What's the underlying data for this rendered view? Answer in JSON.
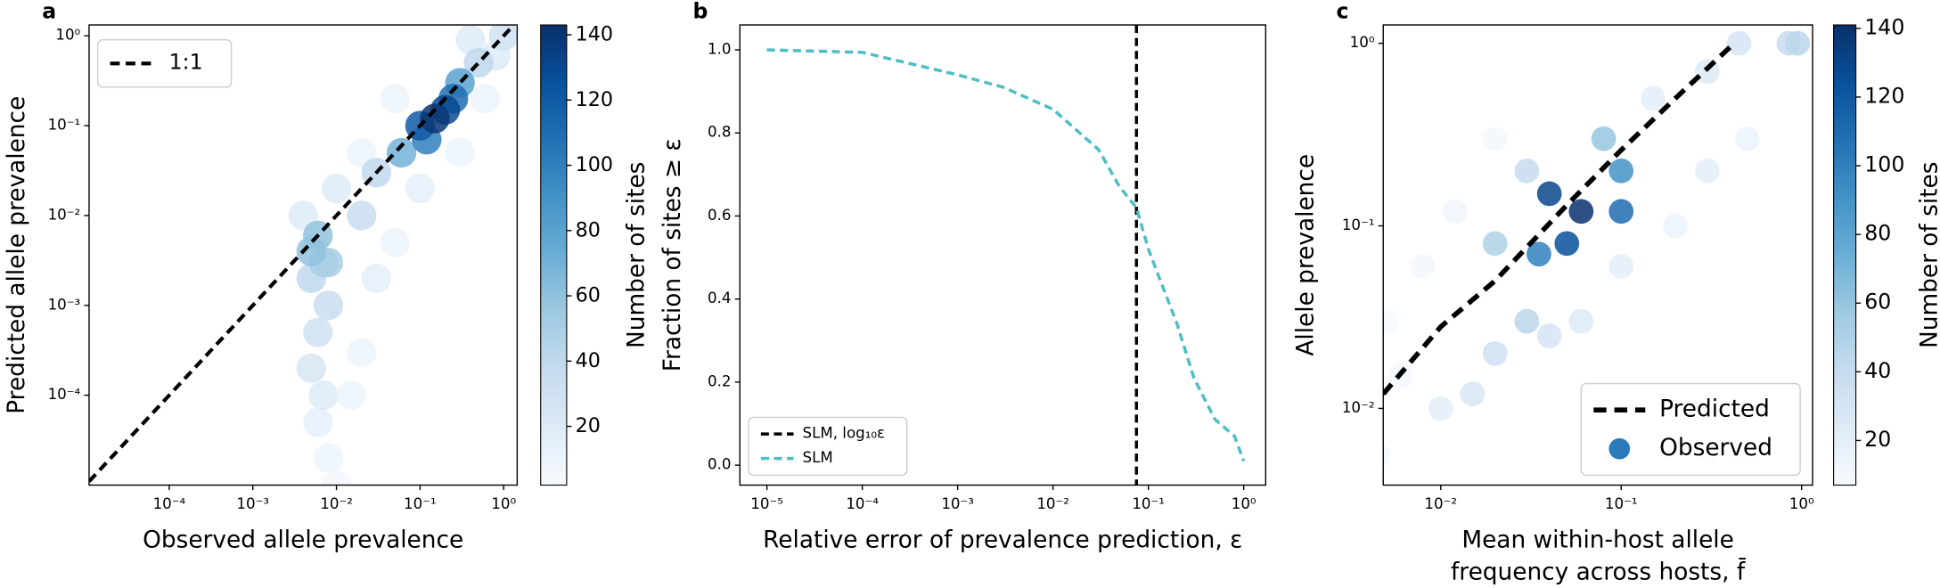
{
  "chart_data": [
    {
      "type": "scatter",
      "panel_label": "a",
      "xlabel": "Observed allele prevalence",
      "ylabel": "Predicted allele prevalence",
      "xscale": "log",
      "yscale": "log",
      "xlim": [
        1.1e-05,
        1.45
      ],
      "ylim": [
        1e-05,
        1.32
      ],
      "xticks": [
        {
          "value": 0.0001,
          "label": "10⁻⁴"
        },
        {
          "value": 0.001,
          "label": "10⁻³"
        },
        {
          "value": 0.01,
          "label": "10⁻²"
        },
        {
          "value": 0.1,
          "label": "10⁻¹"
        },
        {
          "value": 1,
          "label": "10⁰"
        }
      ],
      "yticks": [
        {
          "value": 0.0001,
          "label": "10⁻⁴"
        },
        {
          "value": 0.001,
          "label": "10⁻³"
        },
        {
          "value": 0.01,
          "label": "10⁻²"
        },
        {
          "value": 0.1,
          "label": "10⁻¹"
        },
        {
          "value": 1,
          "label": "10⁰"
        }
      ],
      "legend": "upper left",
      "colormap": [
        "#f7fbff",
        "#deebf7",
        "#c6dbef",
        "#9ecae1",
        "#6baed6",
        "#4292c6",
        "#2171b5",
        "#08519c",
        "#08306b"
      ],
      "colorbar": {
        "label": "Number of sites",
        "lim": [
          2,
          143
        ],
        "ticks": [
          20,
          40,
          60,
          80,
          100,
          120,
          140
        ]
      },
      "series": [
        {
          "type": "scatter",
          "x": [
            0.01,
            0.008,
            0.006,
            0.007,
            0.3,
            0.6,
            0.8,
            0.02,
            0.1,
            0.015,
            0.05,
            0.02,
            0.01,
            0.05,
            0.03,
            0.4,
            0.004,
            0.005,
            0.006,
            0.008,
            1.0,
            0.006,
            0.005,
            0.008,
            0.02,
            0.03,
            0.5,
            0.007,
            0.006,
            0.005,
            0.06,
            0.3,
            0.12,
            0.25,
            0.1,
            0.2,
            0.15
          ],
          "y": [
            1e-05,
            2e-05,
            5e-05,
            0.0001,
            0.05,
            0.2,
            0.6,
            0.0003,
            0.02,
            0.0001,
            0.005,
            0.05,
            0.02,
            0.2,
            0.002,
            0.9,
            0.01,
            0.0002,
            0.0005,
            0.001,
            1.0,
            0.006,
            0.002,
            0.003,
            0.01,
            0.03,
            0.5,
            0.003,
            0.006,
            0.004,
            0.05,
            0.3,
            0.07,
            0.2,
            0.1,
            0.15,
            0.12
          ],
          "density": [
            5,
            10,
            15,
            20,
            10,
            10,
            20,
            10,
            15,
            10,
            10,
            10,
            20,
            10,
            15,
            20,
            20,
            25,
            30,
            35,
            30,
            55,
            40,
            50,
            35,
            40,
            40,
            50,
            55,
            60,
            70,
            80,
            100,
            110,
            120,
            130,
            140
          ]
        },
        {
          "name": "1:1",
          "type": "line",
          "color": "#000000",
          "dash": true,
          "x": [
            1.1e-05,
            1.32
          ],
          "y": [
            1.1e-05,
            1.32
          ]
        }
      ]
    },
    {
      "type": "line",
      "panel_label": "b",
      "xlabel": "Relative error of prevalence prediction, ε",
      "ylabel": "Fraction of sites ≥ ε",
      "xscale": "log",
      "xlim": [
        5.2e-06,
        1.7
      ],
      "ylim": [
        -0.048,
        1.06
      ],
      "xticks": [
        {
          "value": 1e-05,
          "label": "10⁻⁵"
        },
        {
          "value": 0.0001,
          "label": "10⁻⁴"
        },
        {
          "value": 0.001,
          "label": "10⁻³"
        },
        {
          "value": 0.01,
          "label": "10⁻²"
        },
        {
          "value": 0.1,
          "label": "10⁻¹"
        },
        {
          "value": 1,
          "label": "10⁰"
        }
      ],
      "yticks": [
        {
          "value": 0,
          "label": "0.0"
        },
        0.2,
        0.4,
        0.6,
        0.8,
        {
          "value": 1,
          "label": "1.0"
        }
      ],
      "legend": "lower left",
      "series": [
        {
          "name": "SLM, log₁₀ε",
          "type": "vline",
          "color": "#000000",
          "dash": true,
          "x": 0.075
        },
        {
          "name": "SLM",
          "type": "line",
          "color": "#4dbec4",
          "dash": true,
          "x": [
            1e-05,
            0.0001,
            0.001,
            0.003,
            0.01,
            0.03,
            0.05,
            0.075,
            0.1,
            0.2,
            0.3,
            0.5,
            0.8,
            1.0
          ],
          "y": [
            1.0,
            0.994,
            0.94,
            0.91,
            0.857,
            0.76,
            0.67,
            0.62,
            0.52,
            0.34,
            0.21,
            0.11,
            0.07,
            0.01
          ]
        }
      ]
    },
    {
      "type": "scatter",
      "panel_label": "c",
      "xlabel": [
        "Mean within-host allele",
        "frequency across hosts, f̄"
      ],
      "ylabel": "Allele prevalence",
      "xscale": "log",
      "yscale": "log",
      "xlim": [
        0.0048,
        1.15
      ],
      "ylim": [
        0.0038,
        1.26
      ],
      "xticks": [
        {
          "value": 0.01,
          "label": "10⁻²"
        },
        {
          "value": 0.1,
          "label": "10⁻¹"
        },
        {
          "value": 1,
          "label": "10⁰"
        }
      ],
      "yticks": [
        {
          "value": 0.01,
          "label": "10⁻²"
        },
        {
          "value": 0.1,
          "label": "10⁻¹"
        },
        {
          "value": 1,
          "label": "10⁰"
        }
      ],
      "legend": "lower right",
      "colormap": [
        "#f7fbff",
        "#deebf7",
        "#c6dbef",
        "#9ecae1",
        "#6baed6",
        "#4292c6",
        "#2171b5",
        "#08519c",
        "#08306b"
      ],
      "colorbar": {
        "label": "Number of sites",
        "lim": [
          7,
          141
        ],
        "ticks": [
          20,
          40,
          60,
          80,
          100,
          120,
          140
        ]
      },
      "series": [
        {
          "name": "Predicted",
          "type": "line",
          "color": "#000000",
          "dash": true,
          "x": [
            0.0048,
            0.01,
            0.02,
            0.05,
            0.1,
            0.2,
            0.4
          ],
          "y": [
            0.012,
            0.028,
            0.05,
            0.13,
            0.26,
            0.5,
            0.95
          ]
        },
        {
          "name": "Observed",
          "type": "scatter",
          "color": "#2b7bba",
          "x": [
            0.005,
            0.0045,
            0.006,
            0.008,
            0.02,
            0.012,
            0.5,
            0.2,
            0.1,
            0.01,
            0.015,
            0.3,
            0.15,
            0.06,
            0.3,
            0.015,
            0.04,
            0.45,
            0.02,
            0.03,
            0.03,
            0.85,
            0.95,
            0.02,
            0.08,
            0.1,
            0.035,
            0.1,
            0.05,
            0.04,
            0.06
          ],
          "y": [
            0.03,
            0.0055,
            0.015,
            0.06,
            0.3,
            0.12,
            0.3,
            0.1,
            0.06,
            0.01,
            0.012,
            0.2,
            0.5,
            0.03,
            0.7,
            0.012,
            0.025,
            1.0,
            0.02,
            0.03,
            0.2,
            1.0,
            1.0,
            0.08,
            0.3,
            0.2,
            0.07,
            0.12,
            0.08,
            0.15,
            0.12
          ],
          "density": [
            8,
            10,
            10,
            10,
            10,
            12,
            15,
            15,
            20,
            20,
            25,
            20,
            20,
            25,
            25,
            25,
            30,
            30,
            35,
            45,
            40,
            40,
            45,
            50,
            60,
            90,
            100,
            110,
            125,
            130,
            140
          ]
        }
      ]
    }
  ]
}
